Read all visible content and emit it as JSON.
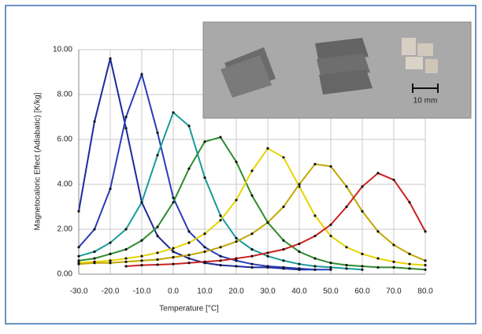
{
  "chart_data": {
    "type": "line",
    "xlabel": "Temperature [°C]",
    "ylabel": "Magnetocaloric Effect (Adiabatic) [K/kg]",
    "inset_label": "10 mm",
    "x": [
      -30,
      -25,
      -20,
      -15,
      -10,
      -5,
      0,
      5,
      10,
      15,
      20,
      25,
      30,
      35,
      40,
      45,
      50,
      55,
      60,
      65,
      70,
      75,
      80
    ],
    "xlim": [
      -30,
      80
    ],
    "xticks": [
      {
        "value": -30,
        "label": "-30.0"
      },
      {
        "value": -20,
        "label": "-20.0"
      },
      {
        "value": -10,
        "label": "-10.0"
      },
      {
        "value": 0,
        "label": "0.0"
      },
      {
        "value": 10,
        "label": "10.0"
      },
      {
        "value": 20,
        "label": "20.0"
      },
      {
        "value": 30,
        "label": "30.0"
      },
      {
        "value": 40,
        "label": "40.0"
      },
      {
        "value": 50,
        "label": "50.0"
      },
      {
        "value": 60,
        "label": "60.0"
      },
      {
        "value": 70,
        "label": "70.0"
      },
      {
        "value": 80,
        "label": "80.0"
      }
    ],
    "ylim": [
      0,
      10
    ],
    "yticks": [
      {
        "value": 0,
        "label": "0.00"
      },
      {
        "value": 2,
        "label": "2.00"
      },
      {
        "value": 4,
        "label": "4.00"
      },
      {
        "value": 6,
        "label": "6.00"
      },
      {
        "value": 8,
        "label": "8.00"
      },
      {
        "value": 10,
        "label": "10.00"
      }
    ],
    "grid": true,
    "series": [
      {
        "color": "#1c2a9a",
        "values": [
          2.8,
          6.8,
          9.6,
          6.5,
          3.2,
          1.7,
          1.0,
          0.7,
          0.5,
          0.4,
          0.35,
          0.3,
          0.3,
          0.25,
          0.2,
          0.2,
          null,
          null,
          null,
          null,
          null,
          null,
          null
        ]
      },
      {
        "color": "#2a3cb8",
        "values": [
          1.2,
          2.0,
          3.8,
          7.0,
          8.9,
          6.3,
          3.4,
          1.9,
          1.2,
          0.8,
          0.6,
          0.45,
          0.35,
          0.3,
          0.25,
          0.2,
          0.2,
          null,
          null,
          null,
          null,
          null,
          null
        ]
      },
      {
        "color": "#1a9a9a",
        "values": [
          0.8,
          1.0,
          1.4,
          2.0,
          3.2,
          5.3,
          7.2,
          6.6,
          4.3,
          2.6,
          1.6,
          1.1,
          0.8,
          0.6,
          0.45,
          0.35,
          0.3,
          0.25,
          0.2,
          null,
          null,
          null,
          null
        ]
      },
      {
        "color": "#2e8b2e",
        "values": [
          0.6,
          0.7,
          0.9,
          1.1,
          1.5,
          2.1,
          3.2,
          4.7,
          5.9,
          6.1,
          5.0,
          3.5,
          2.3,
          1.5,
          1.0,
          0.7,
          0.5,
          0.4,
          0.35,
          0.3,
          0.3,
          0.25,
          0.2
        ]
      },
      {
        "color": "#e6d400",
        "values": [
          0.5,
          0.55,
          0.6,
          0.7,
          0.8,
          0.95,
          1.15,
          1.4,
          1.8,
          2.4,
          3.3,
          4.6,
          5.6,
          5.2,
          3.9,
          2.6,
          1.7,
          1.2,
          0.9,
          0.7,
          0.55,
          0.45,
          0.4
        ]
      },
      {
        "color": "#c0a800",
        "values": [
          0.45,
          0.5,
          0.5,
          0.55,
          0.6,
          0.65,
          0.75,
          0.85,
          1.0,
          1.2,
          1.45,
          1.8,
          2.3,
          3.0,
          4.0,
          4.9,
          4.8,
          3.9,
          2.8,
          1.9,
          1.3,
          0.9,
          0.6
        ]
      },
      {
        "color": "#cc2020",
        "values": [
          null,
          null,
          null,
          0.35,
          0.4,
          0.42,
          0.45,
          0.5,
          0.55,
          0.6,
          0.7,
          0.8,
          0.95,
          1.1,
          1.35,
          1.7,
          2.2,
          3.0,
          3.9,
          4.5,
          4.2,
          3.2,
          1.9
        ]
      }
    ]
  }
}
